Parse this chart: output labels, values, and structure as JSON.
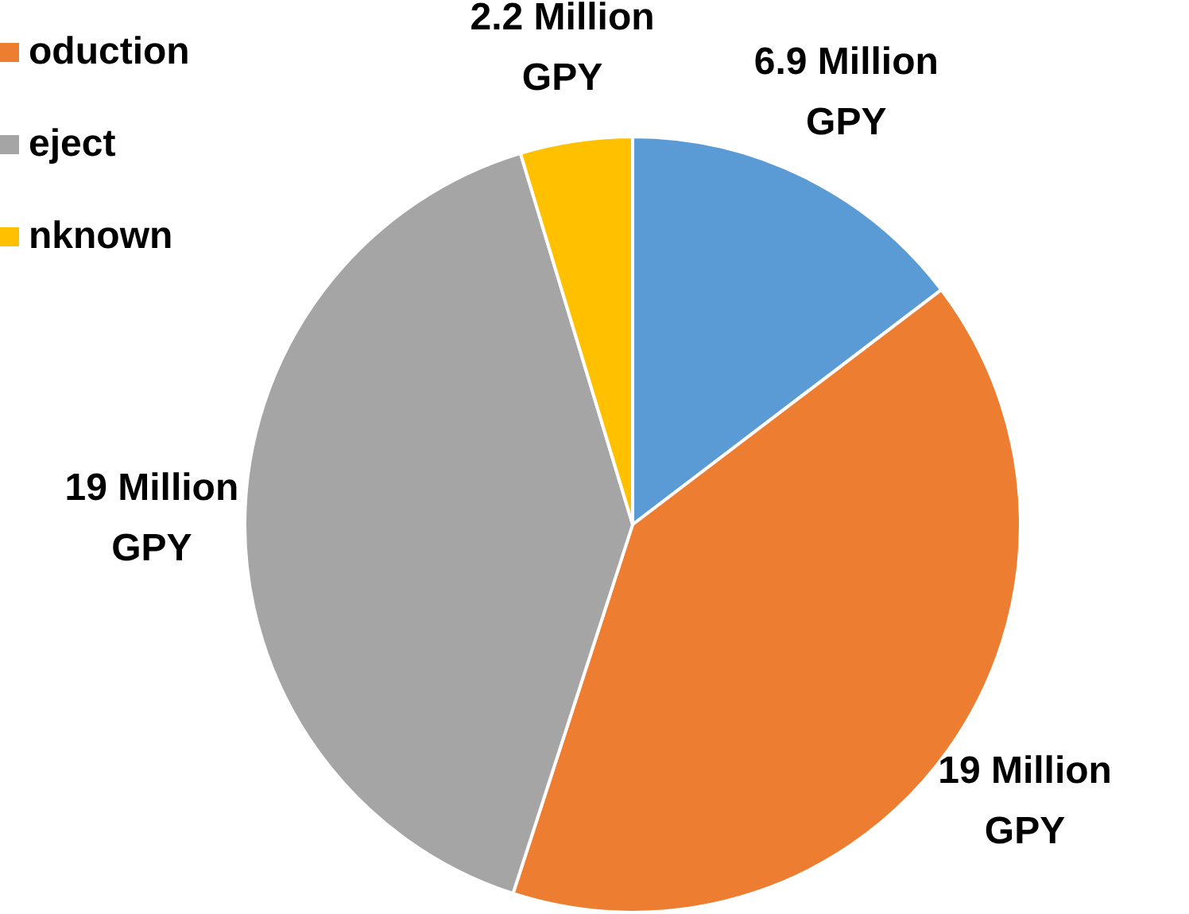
{
  "chart_data": {
    "type": "pie",
    "categories": [
      null,
      "oduction",
      "eject",
      "nknown"
    ],
    "values": [
      6.9,
      19,
      19,
      2.2
    ],
    "colors": [
      "#5b9bd5",
      "#ed7d31",
      "#a5a5a5",
      "#ffc000"
    ],
    "value_labels": [
      "6.9 Million GPY",
      "19 Million GPY",
      "19 Million GPY",
      "2.2 Million GPY"
    ],
    "legend": "left"
  }
}
